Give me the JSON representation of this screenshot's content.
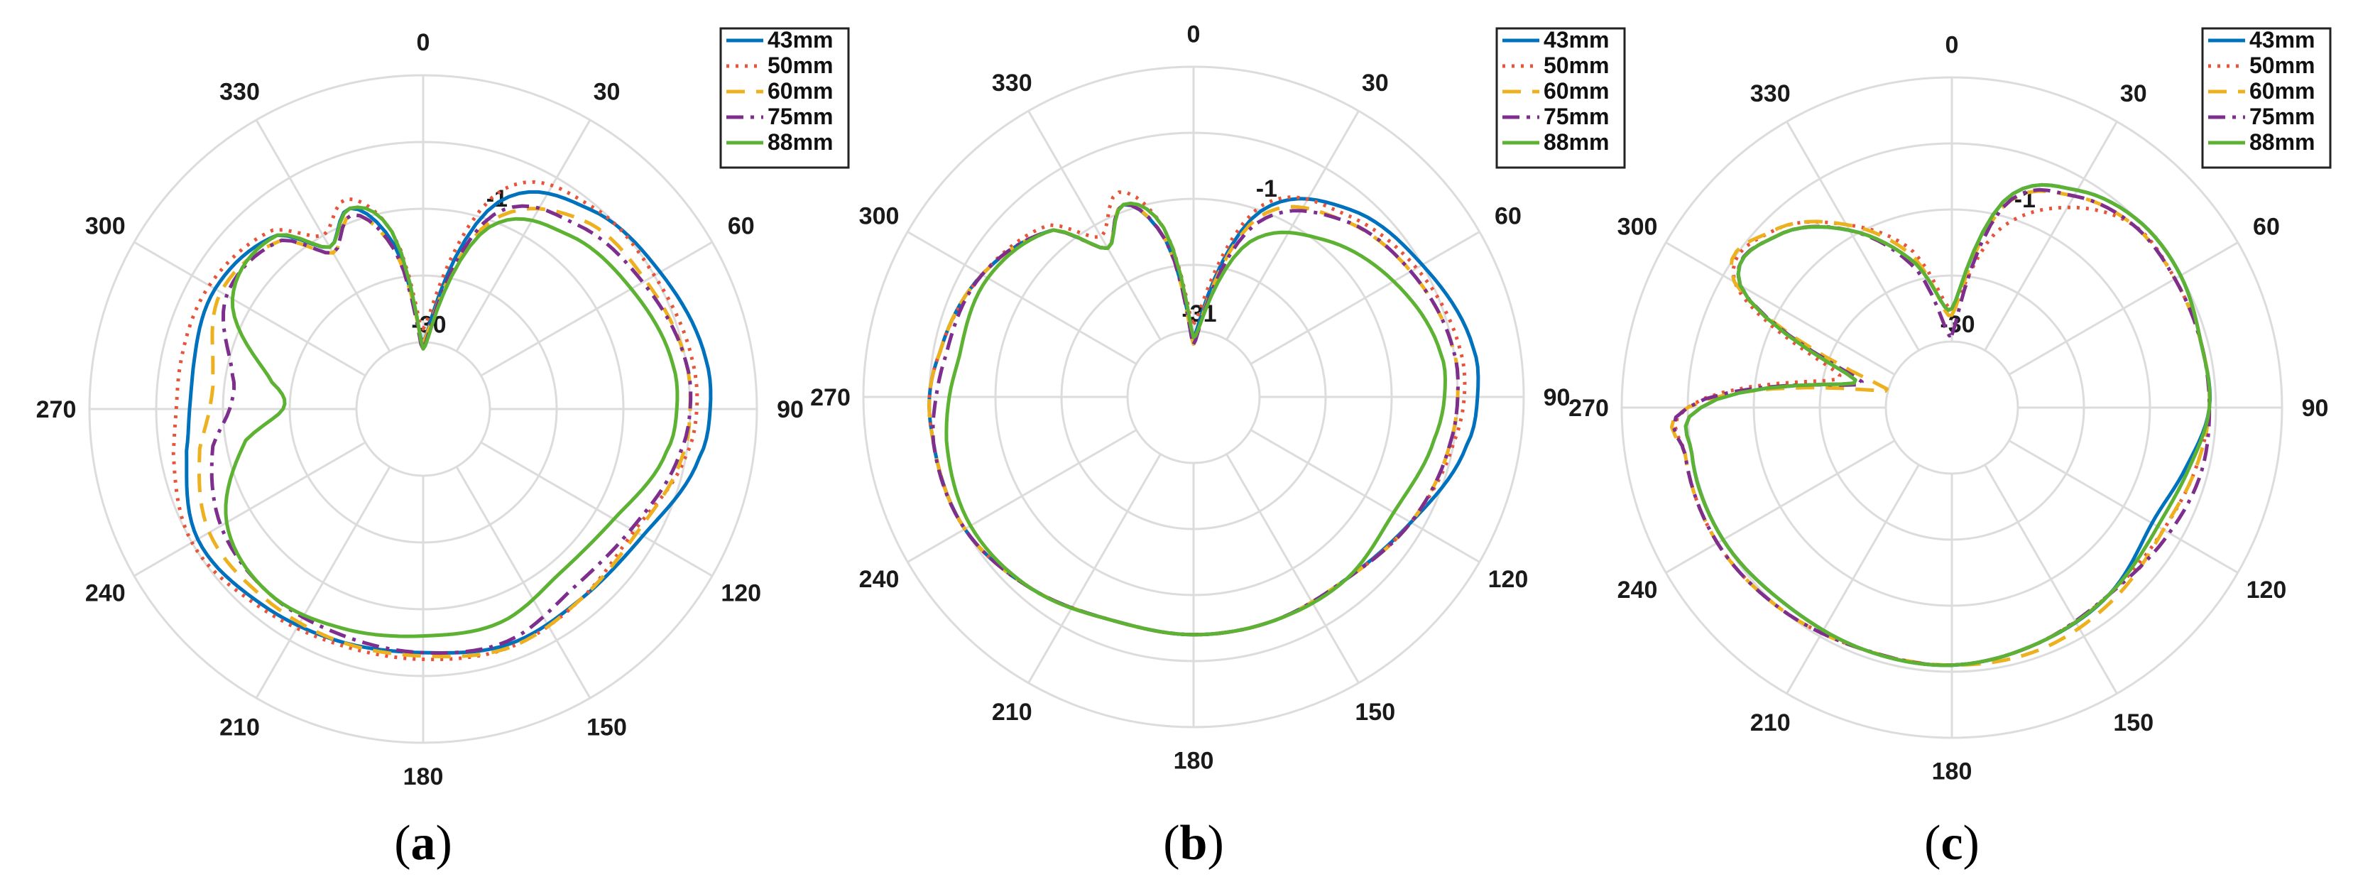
{
  "chart_data": [
    {
      "type": "polar",
      "caption": {
        "open": "(",
        "letter": "a",
        "close": ")"
      },
      "angle_labels": [
        "0",
        "30",
        "60",
        "90",
        "120",
        "150",
        "180",
        "210",
        "240",
        "270",
        "300",
        "330"
      ],
      "radial_labels": [
        "-1",
        "-30"
      ],
      "rlim": [
        -40,
        0
      ],
      "grid": true,
      "legend": "top-right",
      "series": [
        {
          "name": "43mm",
          "color": "#0072BD",
          "dash": "solid",
          "theta": [
            0,
            20,
            40,
            60,
            80,
            90,
            100,
            120,
            140,
            160,
            180,
            200,
            220,
            240,
            260,
            270,
            280,
            300,
            320,
            330,
            340,
            350
          ],
          "r": [
            0.2,
            0.66,
            0.78,
            0.82,
            0.86,
            0.86,
            0.84,
            0.76,
            0.74,
            0.75,
            0.73,
            0.74,
            0.76,
            0.78,
            0.72,
            0.7,
            0.7,
            0.72,
            0.68,
            0.56,
            0.64,
            0.5
          ]
        },
        {
          "name": "50mm",
          "color": "#E8543A",
          "dash": "dotted",
          "theta": [
            0,
            20,
            40,
            60,
            80,
            90,
            100,
            120,
            140,
            160,
            180,
            200,
            220,
            240,
            260,
            270,
            280,
            300,
            320,
            330,
            340,
            350
          ],
          "r": [
            0.24,
            0.7,
            0.79,
            0.8,
            0.82,
            0.82,
            0.8,
            0.73,
            0.74,
            0.76,
            0.75,
            0.75,
            0.77,
            0.8,
            0.76,
            0.74,
            0.74,
            0.74,
            0.7,
            0.6,
            0.67,
            0.54
          ]
        },
        {
          "name": "60mm",
          "color": "#EDB120",
          "dash": "dashed",
          "theta": [
            0,
            20,
            40,
            60,
            80,
            90,
            100,
            120,
            140,
            160,
            180,
            200,
            220,
            240,
            260,
            270,
            280,
            300,
            320,
            330,
            340,
            350
          ],
          "r": [
            0.2,
            0.6,
            0.74,
            0.77,
            0.8,
            0.8,
            0.79,
            0.74,
            0.74,
            0.76,
            0.74,
            0.74,
            0.74,
            0.74,
            0.68,
            0.64,
            0.64,
            0.7,
            0.66,
            0.54,
            0.62,
            0.48
          ]
        },
        {
          "name": "75mm",
          "color": "#7E2F8E",
          "dash": "dashdot",
          "theta": [
            0,
            20,
            40,
            60,
            80,
            90,
            100,
            120,
            140,
            160,
            180,
            200,
            220,
            240,
            260,
            270,
            280,
            300,
            320,
            330,
            340,
            350
          ],
          "r": [
            0.18,
            0.62,
            0.72,
            0.76,
            0.8,
            0.8,
            0.78,
            0.72,
            0.7,
            0.74,
            0.73,
            0.72,
            0.72,
            0.7,
            0.64,
            0.58,
            0.58,
            0.68,
            0.66,
            0.54,
            0.62,
            0.48
          ]
        },
        {
          "name": "88mm",
          "color": "#5DB233",
          "dash": "solid",
          "theta": [
            0,
            20,
            40,
            60,
            80,
            90,
            100,
            120,
            140,
            160,
            180,
            200,
            220,
            240,
            260,
            270,
            280,
            300,
            320,
            330,
            340,
            350
          ],
          "r": [
            0.18,
            0.58,
            0.68,
            0.72,
            0.76,
            0.76,
            0.74,
            0.66,
            0.64,
            0.68,
            0.68,
            0.7,
            0.72,
            0.68,
            0.54,
            0.42,
            0.46,
            0.66,
            0.68,
            0.56,
            0.64,
            0.54
          ]
        }
      ]
    },
    {
      "type": "polar",
      "caption": {
        "open": "(",
        "letter": "b",
        "close": ")"
      },
      "angle_labels": [
        "0",
        "30",
        "60",
        "90",
        "120",
        "150",
        "180",
        "210",
        "240",
        "270",
        "300",
        "330"
      ],
      "radial_labels": [
        "-1",
        "-31"
      ],
      "rlim": [
        -40,
        0
      ],
      "grid": true,
      "legend": "top-right",
      "series": [
        {
          "name": "43mm",
          "color": "#0072BD",
          "dash": "solid",
          "theta": [
            0,
            20,
            40,
            60,
            80,
            90,
            100,
            120,
            140,
            160,
            180,
            200,
            220,
            240,
            260,
            270,
            280,
            300,
            320,
            330,
            340,
            350
          ],
          "r": [
            0.18,
            0.6,
            0.74,
            0.8,
            0.86,
            0.86,
            0.84,
            0.76,
            0.72,
            0.72,
            0.72,
            0.72,
            0.76,
            0.8,
            0.8,
            0.8,
            0.78,
            0.74,
            0.66,
            0.52,
            0.62,
            0.48
          ]
        },
        {
          "name": "50mm",
          "color": "#E8543A",
          "dash": "dotted",
          "theta": [
            0,
            20,
            40,
            60,
            80,
            90,
            100,
            120,
            140,
            160,
            180,
            200,
            220,
            240,
            260,
            270,
            280,
            300,
            320,
            330,
            340,
            350
          ],
          "r": [
            0.22,
            0.62,
            0.72,
            0.78,
            0.82,
            0.82,
            0.8,
            0.76,
            0.72,
            0.72,
            0.72,
            0.72,
            0.76,
            0.8,
            0.8,
            0.8,
            0.78,
            0.74,
            0.68,
            0.56,
            0.66,
            0.52
          ]
        },
        {
          "name": "60mm",
          "color": "#EDB120",
          "dash": "dashed",
          "theta": [
            0,
            20,
            40,
            60,
            80,
            90,
            100,
            120,
            140,
            160,
            180,
            200,
            220,
            240,
            260,
            270,
            280,
            300,
            320,
            330,
            340,
            350
          ],
          "r": [
            0.16,
            0.58,
            0.7,
            0.76,
            0.8,
            0.8,
            0.79,
            0.76,
            0.72,
            0.72,
            0.72,
            0.72,
            0.76,
            0.8,
            0.8,
            0.8,
            0.78,
            0.74,
            0.66,
            0.52,
            0.62,
            0.48
          ]
        },
        {
          "name": "75mm",
          "color": "#7E2F8E",
          "dash": "dashdot",
          "theta": [
            0,
            20,
            40,
            60,
            80,
            90,
            100,
            120,
            140,
            160,
            180,
            200,
            220,
            240,
            260,
            270,
            280,
            300,
            320,
            330,
            340,
            350
          ],
          "r": [
            0.16,
            0.56,
            0.7,
            0.76,
            0.8,
            0.8,
            0.79,
            0.76,
            0.72,
            0.72,
            0.72,
            0.72,
            0.76,
            0.8,
            0.8,
            0.78,
            0.76,
            0.74,
            0.66,
            0.52,
            0.62,
            0.48
          ]
        },
        {
          "name": "88mm",
          "color": "#5DB233",
          "dash": "solid",
          "theta": [
            0,
            20,
            40,
            60,
            80,
            90,
            100,
            120,
            140,
            160,
            180,
            200,
            220,
            240,
            260,
            270,
            280,
            300,
            320,
            330,
            340,
            350
          ],
          "r": [
            0.18,
            0.5,
            0.62,
            0.7,
            0.76,
            0.76,
            0.74,
            0.7,
            0.72,
            0.72,
            0.72,
            0.72,
            0.76,
            0.78,
            0.76,
            0.74,
            0.72,
            0.72,
            0.66,
            0.52,
            0.62,
            0.52
          ]
        }
      ]
    },
    {
      "type": "polar",
      "caption": {
        "open": "(",
        "letter": "c",
        "close": ")"
      },
      "angle_labels": [
        "0",
        "30",
        "60",
        "90",
        "120",
        "150",
        "180",
        "210",
        "240",
        "270",
        "300",
        "330"
      ],
      "radial_labels": [
        "-1",
        "-30"
      ],
      "rlim": [
        -40,
        0
      ],
      "grid": true,
      "legend": "top-right",
      "series": [
        {
          "name": "43mm",
          "color": "#0072BD",
          "dash": "solid",
          "theta": [
            0,
            15,
            30,
            45,
            60,
            75,
            90,
            105,
            120,
            140,
            160,
            180,
            200,
            220,
            240,
            260,
            270,
            285,
            300,
            315,
            330,
            345
          ],
          "r": [
            0.3,
            0.66,
            0.76,
            0.8,
            0.8,
            0.78,
            0.78,
            0.73,
            0.7,
            0.74,
            0.76,
            0.78,
            0.78,
            0.78,
            0.8,
            0.8,
            0.76,
            0.3,
            0.74,
            0.74,
            0.62,
            0.46
          ]
        },
        {
          "name": "50mm",
          "color": "#E8543A",
          "dash": "dotted",
          "theta": [
            0,
            15,
            30,
            45,
            60,
            75,
            90,
            105,
            120,
            140,
            160,
            180,
            200,
            220,
            240,
            260,
            270,
            285,
            300,
            315,
            330,
            345
          ],
          "r": [
            0.3,
            0.56,
            0.7,
            0.78,
            0.78,
            0.78,
            0.78,
            0.76,
            0.74,
            0.74,
            0.76,
            0.78,
            0.78,
            0.8,
            0.82,
            0.82,
            0.8,
            0.35,
            0.76,
            0.76,
            0.64,
            0.5
          ]
        },
        {
          "name": "60mm",
          "color": "#EDB120",
          "dash": "dashed",
          "theta": [
            0,
            15,
            30,
            45,
            60,
            75,
            90,
            105,
            120,
            140,
            160,
            180,
            200,
            220,
            240,
            260,
            270,
            285,
            300,
            315,
            330,
            345
          ],
          "r": [
            0.28,
            0.64,
            0.74,
            0.78,
            0.78,
            0.78,
            0.78,
            0.76,
            0.74,
            0.76,
            0.78,
            0.78,
            0.78,
            0.8,
            0.82,
            0.82,
            0.8,
            0.2,
            0.76,
            0.76,
            0.64,
            0.48
          ]
        },
        {
          "name": "75mm",
          "color": "#7E2F8E",
          "dash": "dashdot",
          "theta": [
            0,
            15,
            30,
            45,
            60,
            75,
            90,
            105,
            120,
            140,
            160,
            180,
            200,
            220,
            240,
            260,
            270,
            285,
            300,
            315,
            330,
            345
          ],
          "r": [
            0.22,
            0.64,
            0.74,
            0.78,
            0.78,
            0.78,
            0.78,
            0.78,
            0.76,
            0.74,
            0.76,
            0.78,
            0.78,
            0.8,
            0.82,
            0.82,
            0.8,
            0.28,
            0.74,
            0.74,
            0.62,
            0.44
          ]
        },
        {
          "name": "88mm",
          "color": "#5DB233",
          "dash": "solid",
          "theta": [
            0,
            15,
            30,
            45,
            60,
            75,
            90,
            105,
            120,
            140,
            160,
            180,
            200,
            220,
            240,
            260,
            270,
            285,
            300,
            315,
            330,
            345
          ],
          "r": [
            0.3,
            0.66,
            0.76,
            0.8,
            0.8,
            0.78,
            0.78,
            0.74,
            0.72,
            0.74,
            0.76,
            0.78,
            0.78,
            0.78,
            0.8,
            0.8,
            0.76,
            0.3,
            0.74,
            0.74,
            0.62,
            0.46
          ]
        }
      ]
    }
  ]
}
